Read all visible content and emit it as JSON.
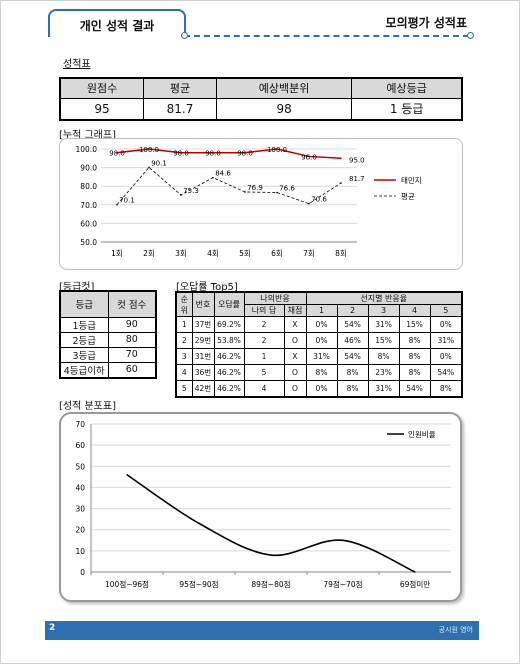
{
  "header": {
    "tab_title": "개인 성적 결과",
    "right_title": "모의평가 성적표"
  },
  "score_section": {
    "title": "성적표",
    "headers": [
      "원점수",
      "평균",
      "예상백분위",
      "예상등급"
    ],
    "values": [
      "95",
      "81.7",
      "98",
      "1 등급"
    ]
  },
  "cumulative_section": {
    "title": "[누적 그래프]"
  },
  "cut_section": {
    "title": "[등급컷]",
    "headers": [
      "등급",
      "컷 점수"
    ],
    "rows": [
      [
        "1등급",
        "90"
      ],
      [
        "2등급",
        "80"
      ],
      [
        "3등급",
        "70"
      ],
      [
        "4등급이하",
        "60"
      ]
    ]
  },
  "top5_section": {
    "title": "[오답률 Top5]",
    "headers": {
      "rank": "순위",
      "number": "번호",
      "rate": "오답률",
      "my_response": "나의반응",
      "my_answer": "나의 답",
      "grade": "채점",
      "choice_rate": "선지별 반응율",
      "choices": [
        "1",
        "2",
        "3",
        "4",
        "5"
      ]
    },
    "rows": [
      [
        "1",
        "37번",
        "69.2%",
        "2",
        "X",
        "0%",
        "54%",
        "31%",
        "15%",
        "0%"
      ],
      [
        "2",
        "29번",
        "53.8%",
        "2",
        "O",
        "0%",
        "46%",
        "15%",
        "8%",
        "31%"
      ],
      [
        "3",
        "31번",
        "46.2%",
        "1",
        "X",
        "31%",
        "54%",
        "8%",
        "8%",
        "0%"
      ],
      [
        "4",
        "36번",
        "46.2%",
        "5",
        "O",
        "8%",
        "8%",
        "23%",
        "8%",
        "54%"
      ],
      [
        "5",
        "42번",
        "46.2%",
        "4",
        "O",
        "0%",
        "8%",
        "31%",
        "54%",
        "8%"
      ]
    ]
  },
  "distribution_section": {
    "title": "[성적 분포표]"
  },
  "footer": {
    "page_number": "2",
    "text": "공시원 영어"
  },
  "chart_data": [
    {
      "type": "line",
      "categories": [
        "1회",
        "2회",
        "3회",
        "4회",
        "5회",
        "6회",
        "7회",
        "8회"
      ],
      "ylim": [
        50.0,
        100.0
      ],
      "yticks": [
        "50.0",
        "60.0",
        "70.0",
        "80.0",
        "90.0",
        "100.0"
      ],
      "grid": true,
      "legend_position": "right",
      "series": [
        {
          "name": "태민지",
          "color": "#c00000",
          "style": "solid",
          "values": [
            98.0,
            100.0,
            98.0,
            98.0,
            98.0,
            100.0,
            96.0,
            95.0
          ],
          "labels": [
            "98.0",
            "100.0",
            "98.0",
            "98.0",
            "98.0",
            "100.0",
            "96.0",
            "95.0"
          ]
        },
        {
          "name": "평균",
          "color": "#000000",
          "style": "dashed",
          "values": [
            70.1,
            90.1,
            75.3,
            84.6,
            76.9,
            76.6,
            70.6,
            81.7
          ],
          "labels": [
            "70.1",
            "90.1",
            "75.3",
            "84.6",
            "76.9",
            "76.6",
            "70.6",
            "81.7"
          ]
        }
      ]
    },
    {
      "type": "line",
      "categories": [
        "100점~96점",
        "95점~90점",
        "89점~80점",
        "79점~70점",
        "69점미만"
      ],
      "ylim": [
        0,
        70
      ],
      "yticks": [
        "0",
        "10",
        "20",
        "30",
        "40",
        "50",
        "60",
        "70"
      ],
      "grid": true,
      "legend_position": "top-right",
      "series": [
        {
          "name": "인원비율",
          "color": "#000000",
          "style": "smooth",
          "values": [
            46,
            23,
            8,
            15,
            0
          ]
        }
      ]
    }
  ]
}
